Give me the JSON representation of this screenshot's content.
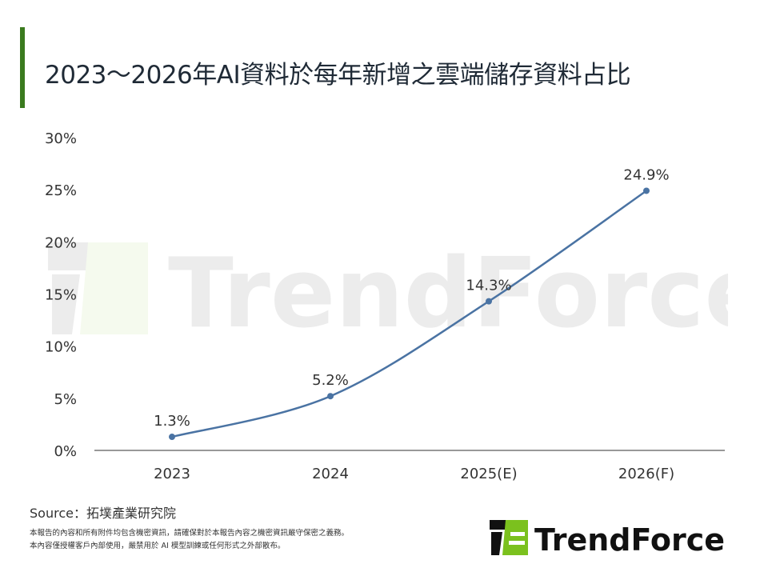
{
  "title": "2023～2026年AI資料於每年新增之雲端儲存資料占比",
  "accent_color": "#3a7a1e",
  "line_color": "#4a73a3",
  "source": "Source：拓墣產業研究院",
  "disclaimer": [
    "本報告的內容和所有附件均包含機密資訊，請確保對於本報告內容之機密資訊嚴守保密之義務。",
    "本內容僅授權客戶內部使用，嚴禁用於 AI 模型訓練或任何形式之外部散布。"
  ],
  "logo": {
    "text": "TrendForce",
    "colors": [
      "#111111",
      "#7bc11e"
    ]
  },
  "watermark": "TrendForce",
  "chart_data": {
    "type": "line",
    "title": "2023～2026年AI資料於每年新增之雲端儲存資料占比",
    "categories": [
      "2023",
      "2024",
      "2025(E)",
      "2026(F)"
    ],
    "series": [
      {
        "values": [
          1.3,
          5.2,
          14.3,
          24.9
        ]
      }
    ],
    "data_labels": [
      "1.3%",
      "5.2%",
      "14.3%",
      "24.9%"
    ],
    "yticks": [
      "0%",
      "5%",
      "10%",
      "15%",
      "20%",
      "25%",
      "30%"
    ],
    "ylim": [
      0,
      30
    ],
    "grid": false,
    "smooth": true
  }
}
